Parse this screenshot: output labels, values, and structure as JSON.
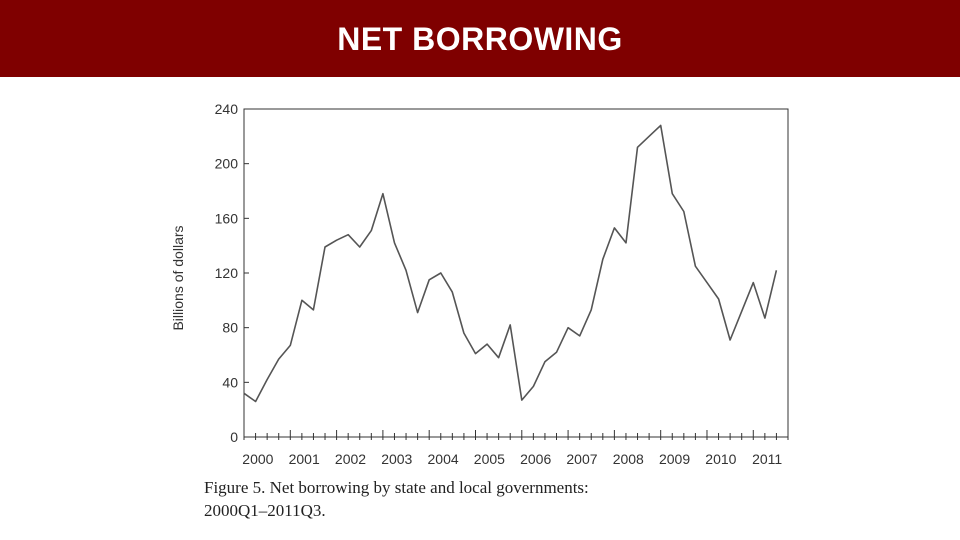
{
  "header": {
    "title": "NET BORROWING"
  },
  "caption": {
    "line1": "Figure 5.  Net borrowing by state and local governments:",
    "line2": "2000Q1–2011Q3."
  },
  "colors": {
    "title_bar": "#7f0000",
    "line": "#555555",
    "axis": "#333333"
  },
  "chart_data": {
    "type": "line",
    "title": "",
    "xlabel": "",
    "ylabel": "Billions of dollars",
    "ylim": [
      0,
      240
    ],
    "yticks": [
      0,
      40,
      80,
      120,
      160,
      200,
      240
    ],
    "xlim": [
      2000,
      2011.75
    ],
    "xticks": [
      {
        "label": "2000",
        "value": 2000.3
      },
      {
        "label": "2001",
        "value": 2001.3
      },
      {
        "label": "2002",
        "value": 2002.3
      },
      {
        "label": "2003",
        "value": 2003.3
      },
      {
        "label": "2004",
        "value": 2004.3
      },
      {
        "label": "2005",
        "value": 2005.3
      },
      {
        "label": "2006",
        "value": 2006.3
      },
      {
        "label": "2007",
        "value": 2007.3
      },
      {
        "label": "2008",
        "value": 2008.3
      },
      {
        "label": "2009",
        "value": 2009.3
      },
      {
        "label": "2010",
        "value": 2010.3
      },
      {
        "label": "2011",
        "value": 2011.3
      }
    ],
    "series": [
      {
        "name": "Net borrowing",
        "points": [
          [
            2000.0,
            32
          ],
          [
            2000.25,
            26
          ],
          [
            2000.5,
            42
          ],
          [
            2000.75,
            57
          ],
          [
            2001.0,
            67
          ],
          [
            2001.25,
            100
          ],
          [
            2001.5,
            93
          ],
          [
            2001.75,
            139
          ],
          [
            2002.0,
            144
          ],
          [
            2002.25,
            148
          ],
          [
            2002.5,
            139
          ],
          [
            2002.75,
            151
          ],
          [
            2003.0,
            178
          ],
          [
            2003.25,
            142
          ],
          [
            2003.5,
            122
          ],
          [
            2003.75,
            91
          ],
          [
            2004.0,
            115
          ],
          [
            2004.25,
            120
          ],
          [
            2004.5,
            106
          ],
          [
            2004.75,
            76
          ],
          [
            2005.0,
            61
          ],
          [
            2005.25,
            68
          ],
          [
            2005.5,
            58
          ],
          [
            2005.75,
            82
          ],
          [
            2006.0,
            27
          ],
          [
            2006.25,
            37
          ],
          [
            2006.5,
            55
          ],
          [
            2006.75,
            62
          ],
          [
            2007.0,
            80
          ],
          [
            2007.25,
            74
          ],
          [
            2007.5,
            93
          ],
          [
            2007.75,
            130
          ],
          [
            2008.0,
            153
          ],
          [
            2008.25,
            142
          ],
          [
            2008.5,
            212
          ],
          [
            2008.75,
            220
          ],
          [
            2009.0,
            228
          ],
          [
            2009.25,
            178
          ],
          [
            2009.5,
            165
          ],
          [
            2009.75,
            125
          ],
          [
            2010.0,
            113
          ],
          [
            2010.25,
            101
          ],
          [
            2010.5,
            71
          ],
          [
            2010.75,
            92
          ],
          [
            2011.0,
            113
          ],
          [
            2011.25,
            87
          ],
          [
            2011.5,
            122
          ]
        ]
      }
    ]
  }
}
